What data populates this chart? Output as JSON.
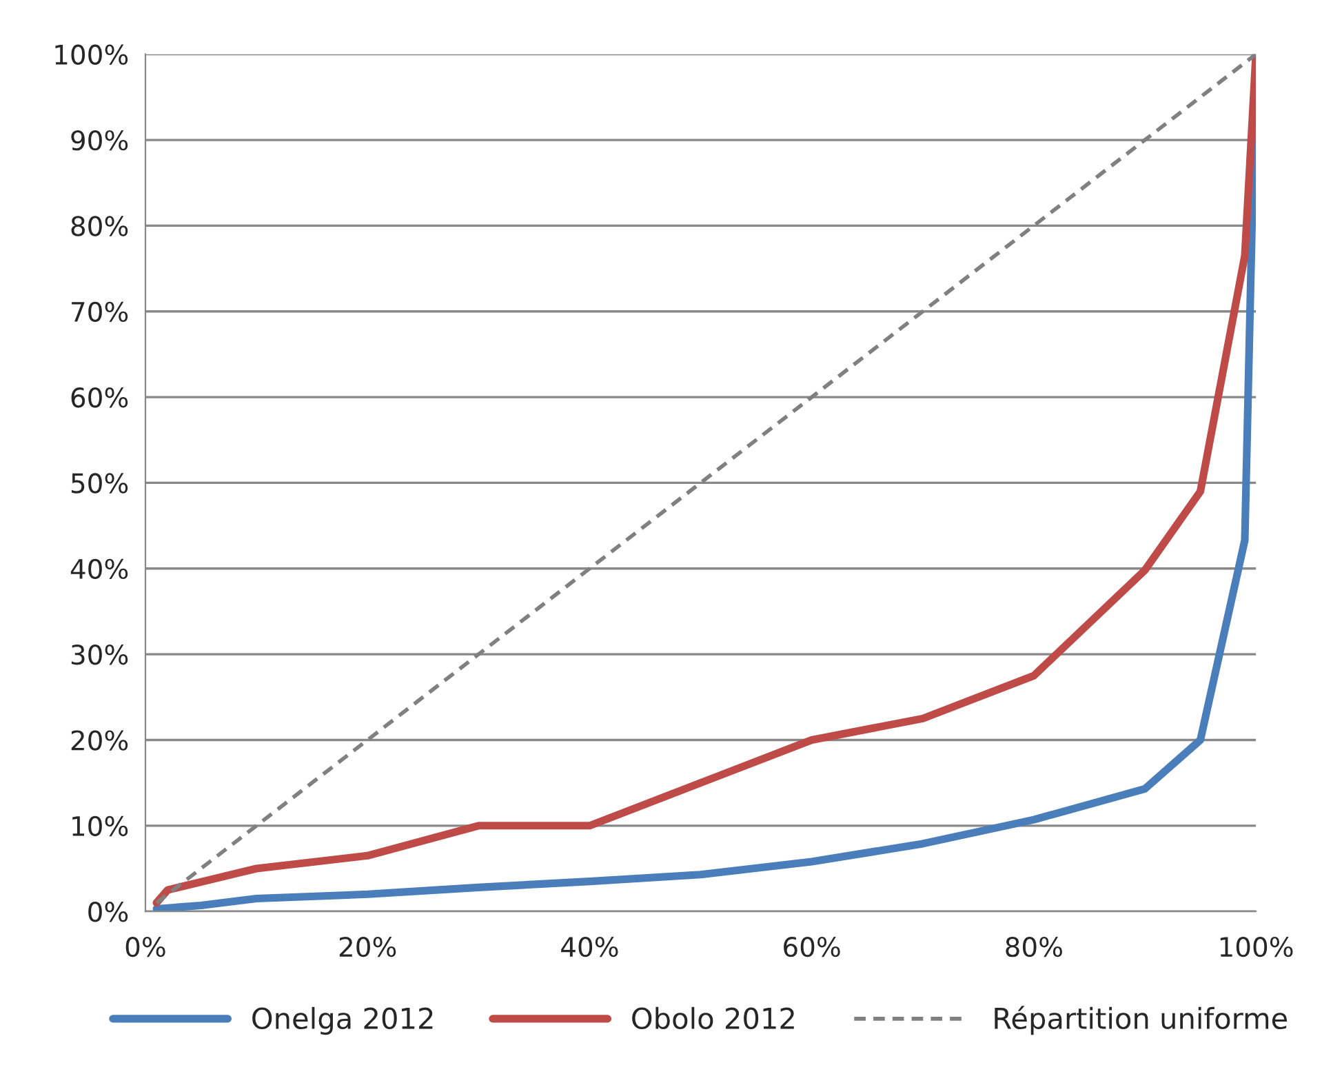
{
  "chart_data": {
    "type": "line",
    "xlim": [
      0,
      100
    ],
    "ylim": [
      0,
      100
    ],
    "xticks": [
      {
        "value": 0,
        "label": "0%"
      },
      {
        "value": 20,
        "label": "20%"
      },
      {
        "value": 40,
        "label": "40%"
      },
      {
        "value": 60,
        "label": "60%"
      },
      {
        "value": 80,
        "label": "80%"
      },
      {
        "value": 100,
        "label": "100%"
      }
    ],
    "yticks": [
      {
        "value": 0,
        "label": "0%"
      },
      {
        "value": 10,
        "label": "10%"
      },
      {
        "value": 20,
        "label": "20%"
      },
      {
        "value": 30,
        "label": "30%"
      },
      {
        "value": 40,
        "label": "40%"
      },
      {
        "value": 50,
        "label": "50%"
      },
      {
        "value": 60,
        "label": "60%"
      },
      {
        "value": 70,
        "label": "70%"
      },
      {
        "value": 80,
        "label": "80%"
      },
      {
        "value": 90,
        "label": "90%"
      },
      {
        "value": 100,
        "label": "100%"
      }
    ],
    "grid": "y",
    "legend": "bottom",
    "marker": "none",
    "series": [
      {
        "name": "Onelga 2012",
        "color": "#4a7ebb",
        "x": [
          1,
          5,
          10,
          20,
          30,
          40,
          50,
          60,
          70,
          80,
          90,
          95,
          99,
          100
        ],
        "values": [
          0.3,
          0.7,
          1.5,
          2,
          2.8,
          3.5,
          4.3,
          5.8,
          7.9,
          10.7,
          14.3,
          20,
          43.3,
          100
        ]
      },
      {
        "name": "Obolo 2012",
        "color": "#be4b48",
        "x": [
          1,
          2,
          10,
          20,
          30,
          40,
          50,
          60,
          70,
          80,
          90,
          95,
          99,
          100
        ],
        "values": [
          1,
          2.5,
          5,
          6.5,
          10,
          10,
          15,
          20,
          22.5,
          27.5,
          39.8,
          49,
          76.5,
          100
        ]
      },
      {
        "name": "Répartition uniforme",
        "color": "#808080",
        "line_style": "dashed",
        "x": [
          1,
          100
        ],
        "values": [
          1,
          100
        ]
      }
    ]
  }
}
